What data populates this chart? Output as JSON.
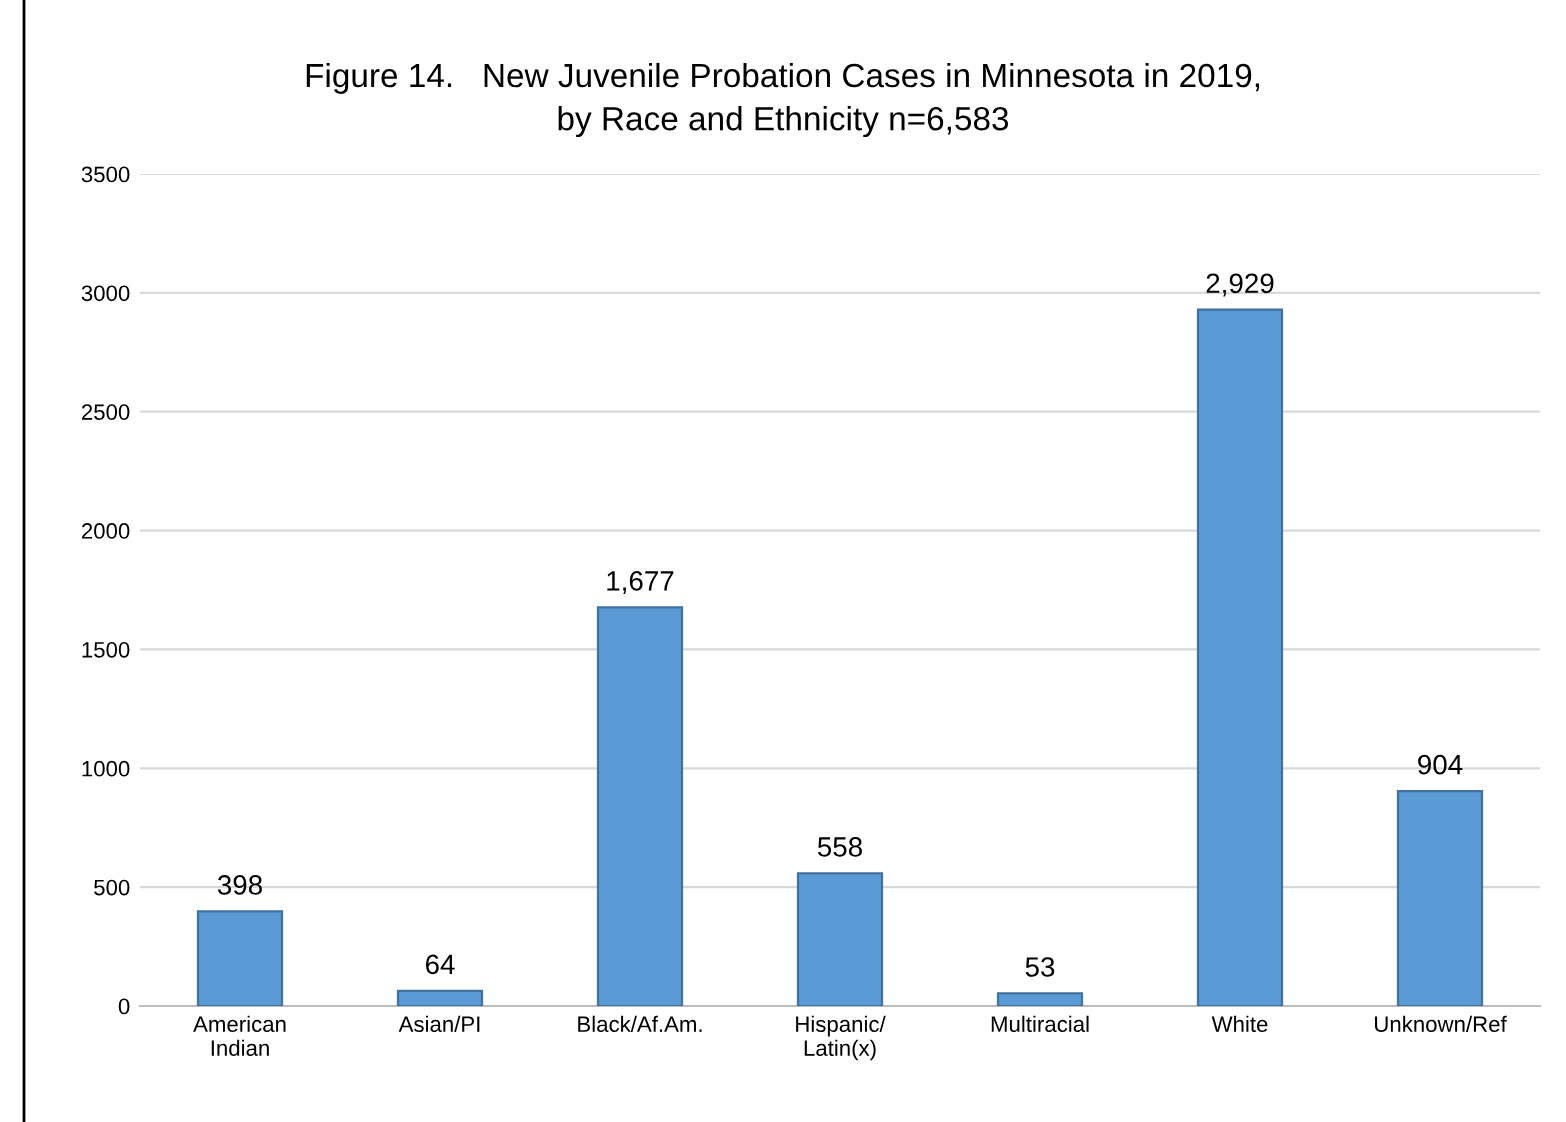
{
  "chart_data": {
    "type": "bar",
    "title": "Figure 14.   New Juvenile Probation Cases in Minnesota in 2019,\nby Race and Ethnicity n=6,583",
    "categories": [
      "American\nIndian",
      "Asian/PI",
      "Black/Af.Am.",
      "Hispanic/\nLatin(x)",
      "Multiracial",
      "White",
      "Unknown/Ref"
    ],
    "values": [
      398,
      64,
      1677,
      558,
      53,
      2929,
      904
    ],
    "value_labels": [
      "398",
      "64",
      "1,677",
      "558",
      "53",
      "2,929",
      "904"
    ],
    "color": "#5b9bd5",
    "ylim": [
      0,
      3500
    ],
    "yticks": [
      0,
      500,
      1000,
      1500,
      2000,
      2500,
      3000,
      3500
    ],
    "grid": "y"
  }
}
